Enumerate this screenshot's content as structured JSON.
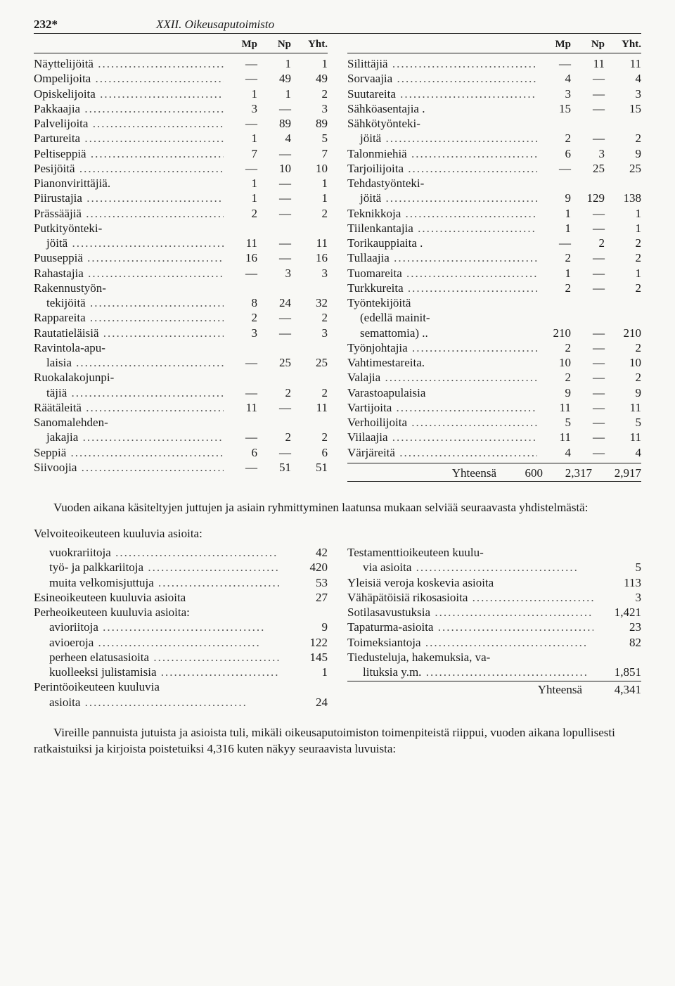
{
  "header": {
    "page_number": "232*",
    "title": "XXII. Oikeusaputoimisto"
  },
  "occ_headers": [
    "Mp",
    "Np",
    "Yht."
  ],
  "occ_left": [
    {
      "label": "Näyttelijöitä",
      "mp": "—",
      "np": "1",
      "yht": "1"
    },
    {
      "label": "Ompelijoita",
      "mp": "—",
      "np": "49",
      "yht": "49"
    },
    {
      "label": "Opiskelijoita",
      "mp": "1",
      "np": "1",
      "yht": "2"
    },
    {
      "label": "Pakkaajia",
      "mp": "3",
      "np": "—",
      "yht": "3"
    },
    {
      "label": "Palvelijoita",
      "mp": "—",
      "np": "89",
      "yht": "89"
    },
    {
      "label": "Partureita",
      "mp": "1",
      "np": "4",
      "yht": "5"
    },
    {
      "label": "Peltiseppiä",
      "mp": "7",
      "np": "—",
      "yht": "7"
    },
    {
      "label": "Pesijöitä",
      "mp": "—",
      "np": "10",
      "yht": "10"
    },
    {
      "label": "Pianonvirittäjiä.",
      "mp": "1",
      "np": "—",
      "yht": "1",
      "noDots": true
    },
    {
      "label": "Piirustajia",
      "mp": "1",
      "np": "—",
      "yht": "1"
    },
    {
      "label": "Prässääjiä",
      "mp": "2",
      "np": "—",
      "yht": "2"
    },
    {
      "label": "Putkityönteki-",
      "noDots": true,
      "cont": true
    },
    {
      "label": "jöitä",
      "mp": "11",
      "np": "—",
      "yht": "11",
      "indent": true
    },
    {
      "label": "Puuseppiä",
      "mp": "16",
      "np": "—",
      "yht": "16"
    },
    {
      "label": "Rahastajia",
      "mp": "—",
      "np": "3",
      "yht": "3"
    },
    {
      "label": "Rakennustyön-",
      "noDots": true,
      "cont": true
    },
    {
      "label": "tekijöitä",
      "mp": "8",
      "np": "24",
      "yht": "32",
      "indent": true
    },
    {
      "label": "Rappareita",
      "mp": "2",
      "np": "—",
      "yht": "2"
    },
    {
      "label": "Rautatieläisiä",
      "mp": "3",
      "np": "—",
      "yht": "3"
    },
    {
      "label": "Ravintola-apu-",
      "noDots": true,
      "cont": true
    },
    {
      "label": "laisia",
      "mp": "—",
      "np": "25",
      "yht": "25",
      "indent": true
    },
    {
      "label": "Ruokalakojunpi-",
      "noDots": true,
      "cont": true
    },
    {
      "label": "täjiä",
      "mp": "—",
      "np": "2",
      "yht": "2",
      "indent": true
    },
    {
      "label": "Räätäleitä",
      "mp": "11",
      "np": "—",
      "yht": "11"
    },
    {
      "label": "Sanomalehden-",
      "noDots": true,
      "cont": true
    },
    {
      "label": "jakajia",
      "mp": "—",
      "np": "2",
      "yht": "2",
      "indent": true
    },
    {
      "label": "Seppiä",
      "mp": "6",
      "np": "—",
      "yht": "6"
    },
    {
      "label": "Siivoojia",
      "mp": "—",
      "np": "51",
      "yht": "51"
    }
  ],
  "occ_right": [
    {
      "label": "Silittäjiä",
      "mp": "—",
      "np": "11",
      "yht": "11"
    },
    {
      "label": "Sorvaajia",
      "mp": "4",
      "np": "—",
      "yht": "4"
    },
    {
      "label": "Suutareita",
      "mp": "3",
      "np": "—",
      "yht": "3"
    },
    {
      "label": "Sähköasentajia .",
      "mp": "15",
      "np": "—",
      "yht": "15",
      "noDots": true
    },
    {
      "label": "Sähkötyönteki-",
      "noDots": true,
      "cont": true
    },
    {
      "label": "jöitä",
      "mp": "2",
      "np": "—",
      "yht": "2",
      "indent": true
    },
    {
      "label": "Talonmiehiä",
      "mp": "6",
      "np": "3",
      "yht": "9"
    },
    {
      "label": "Tarjoilijoita",
      "mp": "—",
      "np": "25",
      "yht": "25"
    },
    {
      "label": "Tehdastyönteki-",
      "noDots": true,
      "cont": true
    },
    {
      "label": "jöitä",
      "mp": "9",
      "np": "129",
      "yht": "138",
      "indent": true
    },
    {
      "label": "Teknikkoja",
      "mp": "1",
      "np": "—",
      "yht": "1"
    },
    {
      "label": "Tiilenkantajia",
      "mp": "1",
      "np": "—",
      "yht": "1"
    },
    {
      "label": "Torikauppiaita .",
      "mp": "—",
      "np": "2",
      "yht": "2",
      "noDots": true
    },
    {
      "label": "Tullaajia",
      "mp": "2",
      "np": "—",
      "yht": "2"
    },
    {
      "label": "Tuomareita",
      "mp": "1",
      "np": "—",
      "yht": "1"
    },
    {
      "label": "Turkkureita",
      "mp": "2",
      "np": "—",
      "yht": "2"
    },
    {
      "label": "Työntekijöitä",
      "noDots": true,
      "cont": true
    },
    {
      "label": "(edellä mainit-",
      "noDots": true,
      "cont": true,
      "indent": true
    },
    {
      "label": "semattomia) ..",
      "mp": "210",
      "np": "—",
      "yht": "210",
      "indent": true,
      "noDots": true
    },
    {
      "label": "Työnjohtajia",
      "mp": "2",
      "np": "—",
      "yht": "2"
    },
    {
      "label": "Vahtimestareita.",
      "mp": "10",
      "np": "—",
      "yht": "10",
      "noDots": true
    },
    {
      "label": "Valajia",
      "mp": "2",
      "np": "—",
      "yht": "2"
    },
    {
      "label": "Varastoapulaisia",
      "mp": "9",
      "np": "—",
      "yht": "9",
      "noDots": true
    },
    {
      "label": "Vartijoita",
      "mp": "11",
      "np": "—",
      "yht": "11"
    },
    {
      "label": "Verhoilijoita",
      "mp": "5",
      "np": "—",
      "yht": "5"
    },
    {
      "label": "Viilaajia",
      "mp": "11",
      "np": "—",
      "yht": "11"
    },
    {
      "label": "Värjäreitä",
      "mp": "4",
      "np": "—",
      "yht": "4"
    }
  ],
  "occ_total": {
    "label": "Yhteensä",
    "mp": "600",
    "np": "2,317",
    "yht": "2,917"
  },
  "paragraph_mid": "Vuoden aikana käsiteltyjen juttujen ja asiain ryhmittyminen laatunsa mukaan selviää seuraavasta yhdistelmästä:",
  "cat_subhead": "Velvoiteoikeuteen kuuluvia asioita:",
  "cat_left": [
    {
      "label": "vuokrariitoja",
      "val": "42",
      "class": "indent"
    },
    {
      "label": "työ- ja palkkariitoja",
      "val": "420",
      "class": "indent"
    },
    {
      "label": "muita velkomisjuttuja",
      "val": "53",
      "class": "indent"
    },
    {
      "label": "Esineoikeuteen kuuluvia asioita",
      "val": "27",
      "class": "outdent",
      "noDots": true
    },
    {
      "label": "Perheoikeuteen kuuluvia asioita:",
      "class": "outdent",
      "noDots": true,
      "cont": true
    },
    {
      "label": "avioriitoja",
      "val": "9",
      "class": "indent"
    },
    {
      "label": "avioeroja",
      "val": "122",
      "class": "indent"
    },
    {
      "label": "perheen elatusasioita",
      "val": "145",
      "class": "indent"
    },
    {
      "label": "kuolleeksi julistamisia",
      "val": "1",
      "class": "indent"
    },
    {
      "label": "Perintöoikeuteen kuuluvia",
      "class": "outdent",
      "noDots": true,
      "cont": true
    },
    {
      "label": "asioita",
      "val": "24",
      "class": "indent"
    }
  ],
  "cat_right": [
    {
      "label": "Testamenttioikeuteen kuulu-",
      "class": "outdent",
      "noDots": true,
      "cont": true
    },
    {
      "label": "via asioita",
      "val": "5",
      "class": "indent"
    },
    {
      "label": "Yleisiä veroja koskevia asioita",
      "val": "113",
      "class": "outdent",
      "noDots": true
    },
    {
      "label": "Vähäpätöisiä rikosasioita",
      "val": "3",
      "class": "outdent"
    },
    {
      "label": "Sotilasavustuksia",
      "val": "1,421",
      "class": "outdent"
    },
    {
      "label": "Tapaturma-asioita",
      "val": "23",
      "class": "outdent"
    },
    {
      "label": "Toimeksiantoja",
      "val": "82",
      "class": "outdent"
    },
    {
      "label": "Tiedusteluja, hakemuksia, va-",
      "class": "outdent",
      "noDots": true,
      "cont": true
    },
    {
      "label": "lituksia y.m.",
      "val": "1,851",
      "class": "indent"
    }
  ],
  "cat_total": {
    "label": "Yhteensä",
    "val": "4,341"
  },
  "paragraph_bottom": "Vireille pannuista jutuista ja asioista tuli, mikäli oikeusaputoimiston toimenpiteistä riippui, vuoden aikana lopullisesti ratkaistuiksi ja kirjoista poistetuiksi 4,316 kuten näkyy seuraavista luvuista:"
}
